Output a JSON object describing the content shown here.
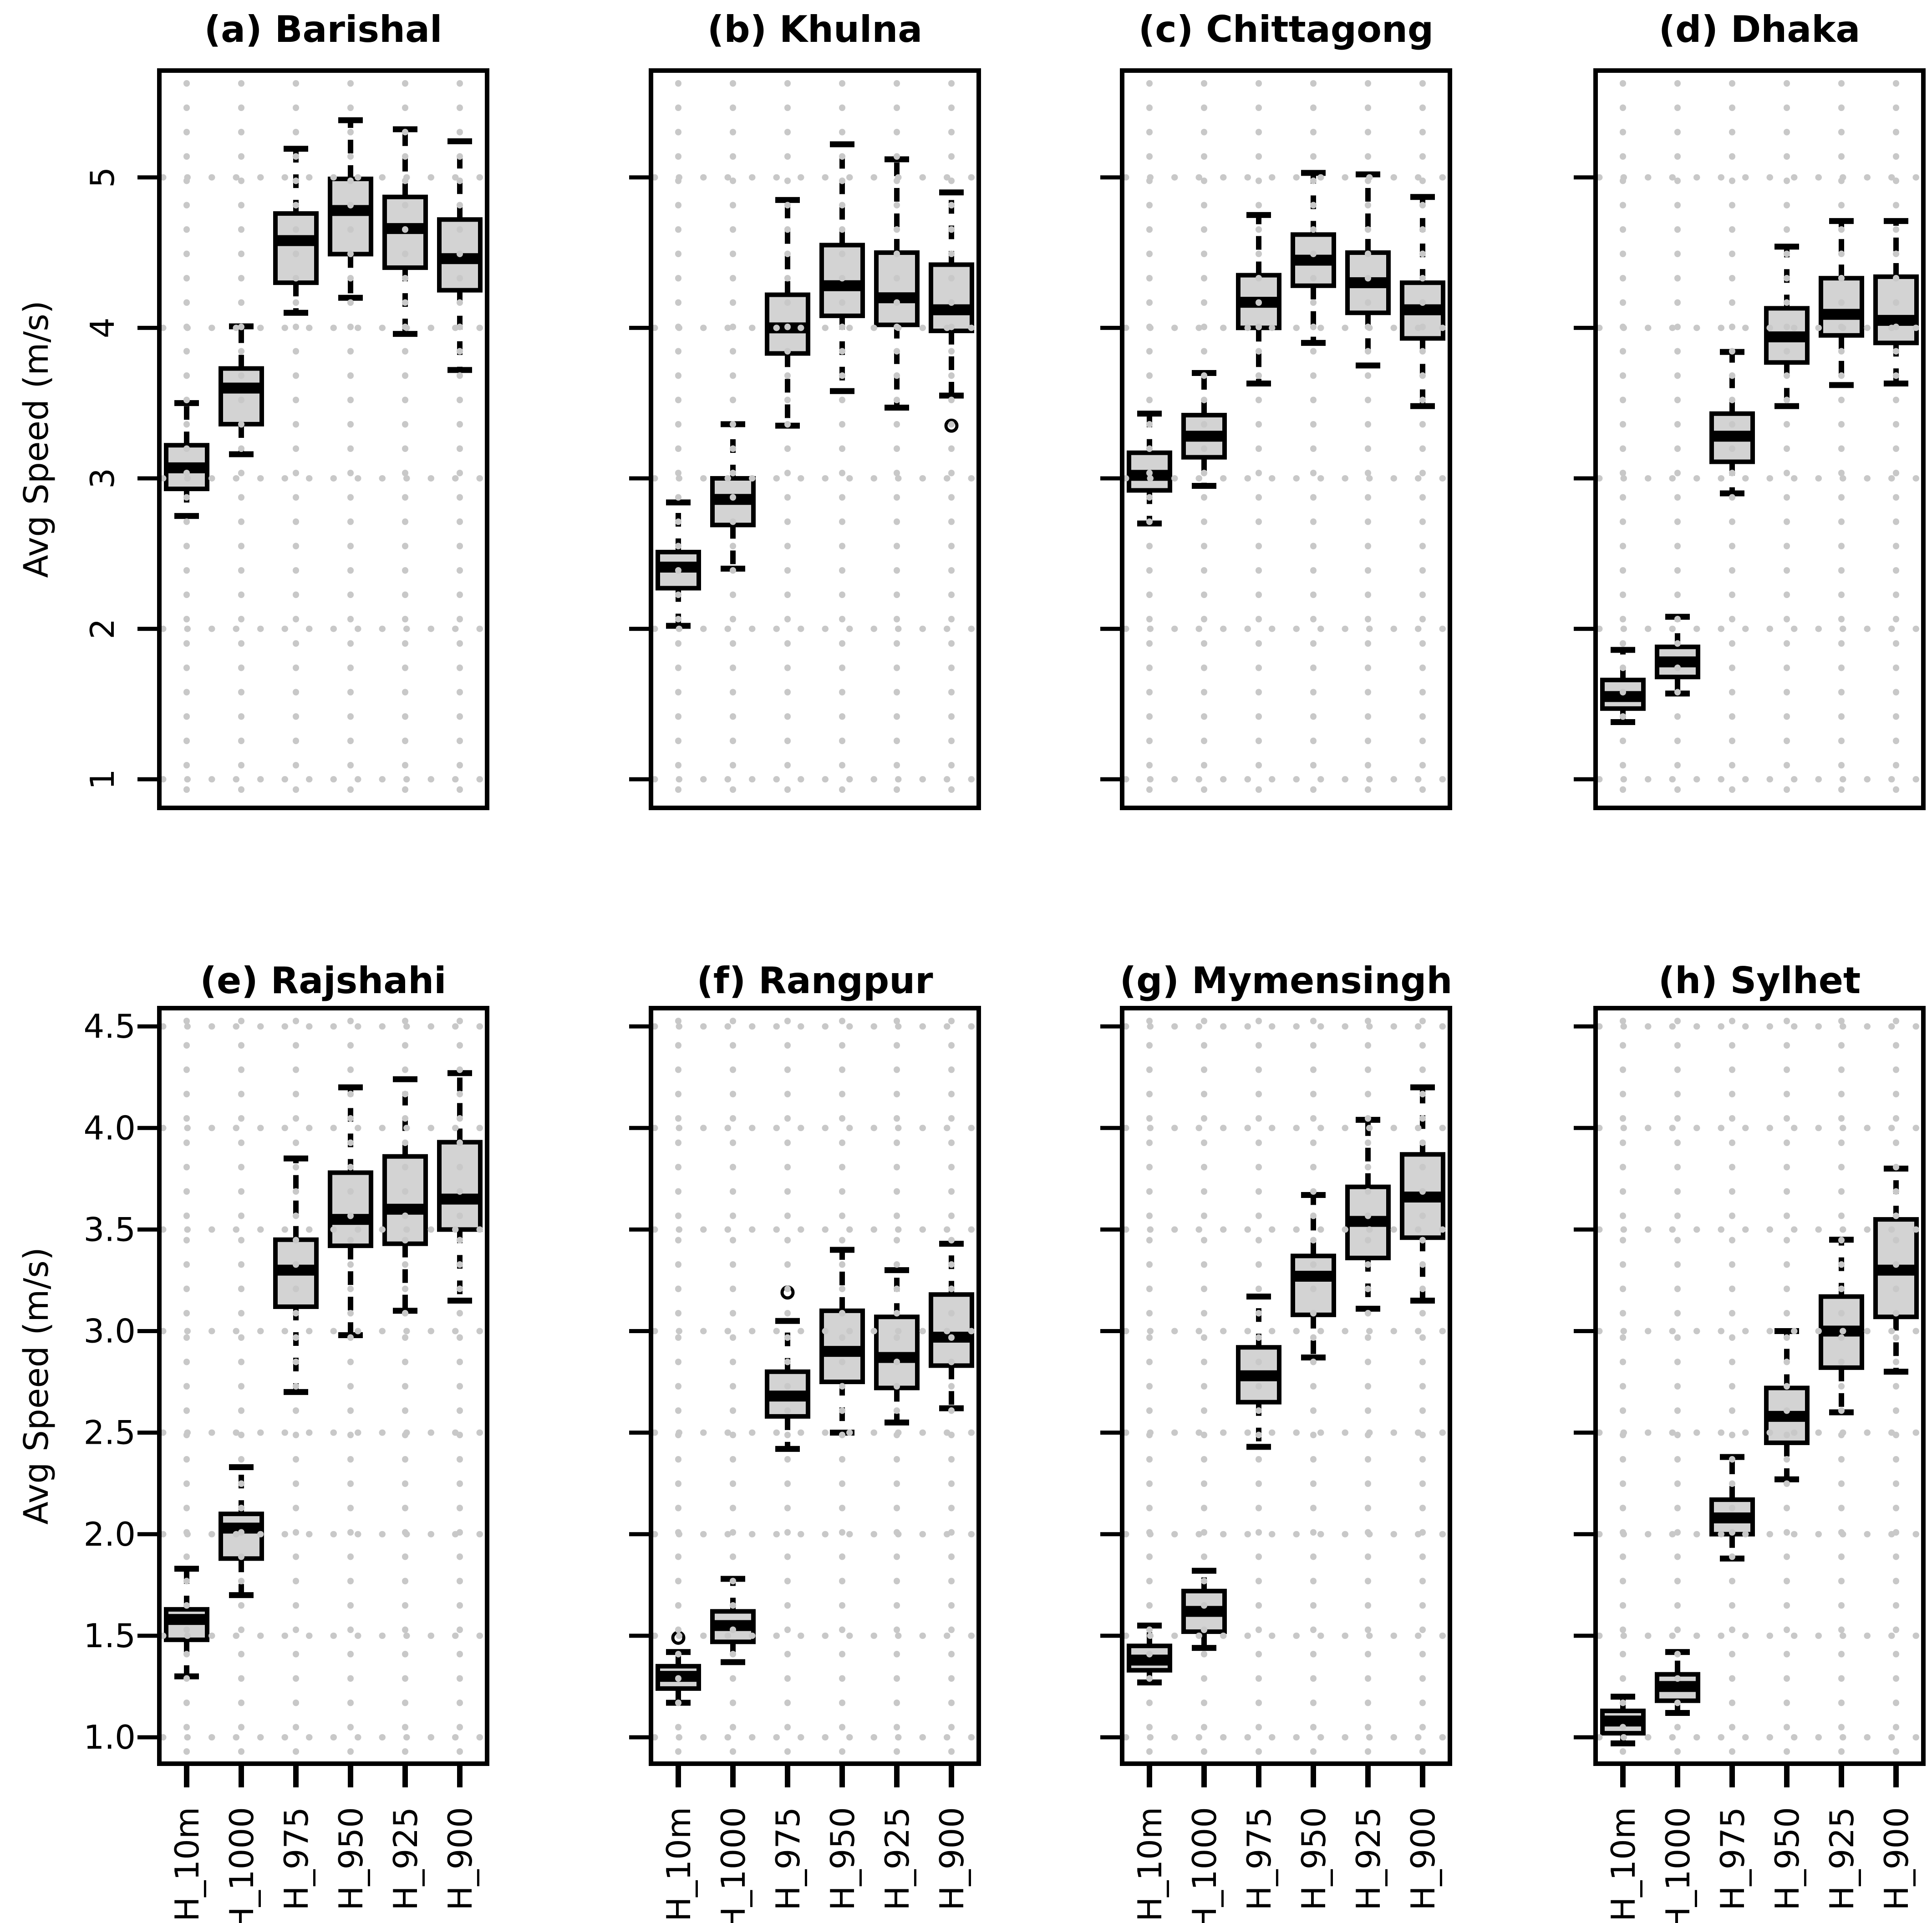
{
  "figure": {
    "background": "#ffffff",
    "box_fill": "#d3d3d3",
    "box_stroke": "#000000",
    "grid_dot_color": "#c8c8c8",
    "text_color": "#000000",
    "ylabel": "Avg Speed (m/s)"
  },
  "chart_data": {
    "type": "boxplot",
    "layout": "2 rows x 4 columns of panels, shared category axis",
    "ylabel": "Avg Speed (m/s)",
    "categories": [
      "H_10m",
      "H_1000",
      "H_975",
      "H_950",
      "H_925",
      "H_900"
    ],
    "rows": [
      {
        "ylim": [
          0.81,
          5.71
        ],
        "yticks": [
          1,
          2,
          3,
          4,
          5
        ],
        "ytick_labels": [
          "1",
          "2",
          "3",
          "4",
          "5"
        ],
        "ytick_labels_rotated": true,
        "grid": true,
        "show_x_labels": false
      },
      {
        "ylim": [
          0.87,
          4.59
        ],
        "yticks": [
          1.0,
          1.5,
          2.0,
          2.5,
          3.0,
          3.5,
          4.0,
          4.5
        ],
        "ytick_labels": [
          "1.0",
          "1.5",
          "2.0",
          "2.5",
          "3.0",
          "3.5",
          "4.0",
          "4.5"
        ],
        "ytick_labels_rotated": false,
        "grid": true,
        "show_x_labels": true
      }
    ],
    "panels": [
      {
        "id": "a",
        "title": "(a) Barishal",
        "row": 0,
        "col": 0,
        "boxes": [
          {
            "category": "H_10m",
            "low": 2.75,
            "q1": 2.93,
            "median": 3.07,
            "q3": 3.22,
            "high": 3.5,
            "outliers": []
          },
          {
            "category": "H_1000",
            "low": 3.16,
            "q1": 3.36,
            "median": 3.6,
            "q3": 3.73,
            "high": 4.01,
            "outliers": []
          },
          {
            "category": "H_975",
            "low": 4.1,
            "q1": 4.3,
            "median": 4.58,
            "q3": 4.76,
            "high": 5.19,
            "outliers": []
          },
          {
            "category": "H_950",
            "low": 4.2,
            "q1": 4.49,
            "median": 4.78,
            "q3": 4.99,
            "high": 5.38,
            "outliers": []
          },
          {
            "category": "H_925",
            "low": 3.96,
            "q1": 4.4,
            "median": 4.66,
            "q3": 4.87,
            "high": 5.32,
            "outliers": []
          },
          {
            "category": "H_900",
            "low": 3.72,
            "q1": 4.25,
            "median": 4.46,
            "q3": 4.72,
            "high": 5.24,
            "outliers": []
          }
        ]
      },
      {
        "id": "b",
        "title": "(b) Khulna",
        "row": 0,
        "col": 1,
        "boxes": [
          {
            "category": "H_10m",
            "low": 2.02,
            "q1": 2.27,
            "median": 2.41,
            "q3": 2.51,
            "high": 2.84,
            "outliers": []
          },
          {
            "category": "H_1000",
            "low": 2.4,
            "q1": 2.69,
            "median": 2.86,
            "q3": 3.0,
            "high": 3.36,
            "outliers": []
          },
          {
            "category": "H_975",
            "low": 3.35,
            "q1": 3.83,
            "median": 4.0,
            "q3": 4.22,
            "high": 4.85,
            "outliers": []
          },
          {
            "category": "H_950",
            "low": 3.58,
            "q1": 4.08,
            "median": 4.28,
            "q3": 4.55,
            "high": 5.22,
            "outliers": []
          },
          {
            "category": "H_925",
            "low": 3.47,
            "q1": 4.02,
            "median": 4.2,
            "q3": 4.5,
            "high": 5.12,
            "outliers": []
          },
          {
            "category": "H_900",
            "low": 3.55,
            "q1": 3.98,
            "median": 4.12,
            "q3": 4.42,
            "high": 4.9,
            "outliers": [
              3.35
            ]
          }
        ]
      },
      {
        "id": "c",
        "title": "(c) Chittagong",
        "row": 0,
        "col": 2,
        "boxes": [
          {
            "category": "H_10m",
            "low": 2.7,
            "q1": 2.92,
            "median": 3.02,
            "q3": 3.17,
            "high": 3.43,
            "outliers": []
          },
          {
            "category": "H_1000",
            "low": 2.95,
            "q1": 3.14,
            "median": 3.28,
            "q3": 3.42,
            "high": 3.7,
            "outliers": []
          },
          {
            "category": "H_975",
            "low": 3.63,
            "q1": 4.0,
            "median": 4.17,
            "q3": 4.35,
            "high": 4.75,
            "outliers": []
          },
          {
            "category": "H_950",
            "low": 3.9,
            "q1": 4.28,
            "median": 4.45,
            "q3": 4.62,
            "high": 5.03,
            "outliers": []
          },
          {
            "category": "H_925",
            "low": 3.75,
            "q1": 4.1,
            "median": 4.3,
            "q3": 4.5,
            "high": 5.02,
            "outliers": []
          },
          {
            "category": "H_900",
            "low": 3.48,
            "q1": 3.93,
            "median": 4.12,
            "q3": 4.3,
            "high": 4.87,
            "outliers": []
          }
        ]
      },
      {
        "id": "d",
        "title": "(d) Dhaka",
        "row": 0,
        "col": 3,
        "boxes": [
          {
            "category": "H_10m",
            "low": 1.38,
            "q1": 1.47,
            "median": 1.55,
            "q3": 1.66,
            "high": 1.86,
            "outliers": []
          },
          {
            "category": "H_1000",
            "low": 1.57,
            "q1": 1.68,
            "median": 1.78,
            "q3": 1.88,
            "high": 2.08,
            "outliers": []
          },
          {
            "category": "H_975",
            "low": 2.9,
            "q1": 3.11,
            "median": 3.28,
            "q3": 3.43,
            "high": 3.84,
            "outliers": []
          },
          {
            "category": "H_950",
            "low": 3.48,
            "q1": 3.77,
            "median": 3.94,
            "q3": 4.13,
            "high": 4.54,
            "outliers": []
          },
          {
            "category": "H_925",
            "low": 3.62,
            "q1": 3.95,
            "median": 4.09,
            "q3": 4.33,
            "high": 4.71,
            "outliers": []
          },
          {
            "category": "H_900",
            "low": 3.63,
            "q1": 3.9,
            "median": 4.05,
            "q3": 4.34,
            "high": 4.71,
            "outliers": []
          }
        ]
      },
      {
        "id": "e",
        "title": "(e) Rajshahi",
        "row": 1,
        "col": 0,
        "boxes": [
          {
            "category": "H_10m",
            "low": 1.3,
            "q1": 1.48,
            "median": 1.58,
            "q3": 1.63,
            "high": 1.83,
            "outliers": []
          },
          {
            "category": "H_1000",
            "low": 1.7,
            "q1": 1.88,
            "median": 2.03,
            "q3": 2.1,
            "high": 2.33,
            "outliers": []
          },
          {
            "category": "H_975",
            "low": 2.7,
            "q1": 3.12,
            "median": 3.3,
            "q3": 3.45,
            "high": 3.85,
            "outliers": []
          },
          {
            "category": "H_950",
            "low": 2.98,
            "q1": 3.42,
            "median": 3.55,
            "q3": 3.78,
            "high": 4.2,
            "outliers": []
          },
          {
            "category": "H_925",
            "low": 3.1,
            "q1": 3.43,
            "median": 3.6,
            "q3": 3.86,
            "high": 4.24,
            "outliers": []
          },
          {
            "category": "H_900",
            "low": 3.15,
            "q1": 3.5,
            "median": 3.65,
            "q3": 3.93,
            "high": 4.27,
            "outliers": []
          }
        ]
      },
      {
        "id": "f",
        "title": "(f) Rangpur",
        "row": 1,
        "col": 1,
        "boxes": [
          {
            "category": "H_10m",
            "low": 1.17,
            "q1": 1.24,
            "median": 1.3,
            "q3": 1.35,
            "high": 1.42,
            "outliers": [
              1.49
            ]
          },
          {
            "category": "H_1000",
            "low": 1.37,
            "q1": 1.47,
            "median": 1.55,
            "q3": 1.62,
            "high": 1.78,
            "outliers": []
          },
          {
            "category": "H_975",
            "low": 2.42,
            "q1": 2.58,
            "median": 2.68,
            "q3": 2.8,
            "high": 3.05,
            "outliers": [
              3.19
            ]
          },
          {
            "category": "H_950",
            "low": 2.5,
            "q1": 2.75,
            "median": 2.9,
            "q3": 3.1,
            "high": 3.4,
            "outliers": []
          },
          {
            "category": "H_925",
            "low": 2.55,
            "q1": 2.72,
            "median": 2.87,
            "q3": 3.07,
            "high": 3.3,
            "outliers": []
          },
          {
            "category": "H_900",
            "low": 2.62,
            "q1": 2.83,
            "median": 2.97,
            "q3": 3.18,
            "high": 3.43,
            "outliers": []
          }
        ]
      },
      {
        "id": "g",
        "title": "(g) Mymensingh",
        "row": 1,
        "col": 2,
        "boxes": [
          {
            "category": "H_10m",
            "low": 1.27,
            "q1": 1.33,
            "median": 1.38,
            "q3": 1.45,
            "high": 1.55,
            "outliers": []
          },
          {
            "category": "H_1000",
            "low": 1.44,
            "q1": 1.52,
            "median": 1.62,
            "q3": 1.72,
            "high": 1.82,
            "outliers": []
          },
          {
            "category": "H_975",
            "low": 2.43,
            "q1": 2.65,
            "median": 2.78,
            "q3": 2.92,
            "high": 3.17,
            "outliers": []
          },
          {
            "category": "H_950",
            "low": 2.87,
            "q1": 3.08,
            "median": 3.27,
            "q3": 3.37,
            "high": 3.67,
            "outliers": []
          },
          {
            "category": "H_925",
            "low": 3.11,
            "q1": 3.36,
            "median": 3.54,
            "q3": 3.71,
            "high": 4.04,
            "outliers": []
          },
          {
            "category": "H_900",
            "low": 3.15,
            "q1": 3.46,
            "median": 3.66,
            "q3": 3.87,
            "high": 4.2,
            "outliers": []
          }
        ]
      },
      {
        "id": "h",
        "title": "(h) Sylhet",
        "row": 1,
        "col": 3,
        "boxes": [
          {
            "category": "H_10m",
            "low": 0.97,
            "q1": 1.02,
            "median": 1.08,
            "q3": 1.13,
            "high": 1.2,
            "outliers": []
          },
          {
            "category": "H_1000",
            "low": 1.12,
            "q1": 1.18,
            "median": 1.25,
            "q3": 1.31,
            "high": 1.42,
            "outliers": []
          },
          {
            "category": "H_975",
            "low": 1.88,
            "q1": 2.0,
            "median": 2.08,
            "q3": 2.17,
            "high": 2.38,
            "outliers": []
          },
          {
            "category": "H_950",
            "low": 2.27,
            "q1": 2.45,
            "median": 2.58,
            "q3": 2.72,
            "high": 3.0,
            "outliers": []
          },
          {
            "category": "H_925",
            "low": 2.6,
            "q1": 2.82,
            "median": 3.0,
            "q3": 3.17,
            "high": 3.45,
            "outliers": []
          },
          {
            "category": "H_900",
            "low": 2.8,
            "q1": 3.07,
            "median": 3.3,
            "q3": 3.55,
            "high": 3.8,
            "outliers": []
          }
        ]
      }
    ]
  }
}
